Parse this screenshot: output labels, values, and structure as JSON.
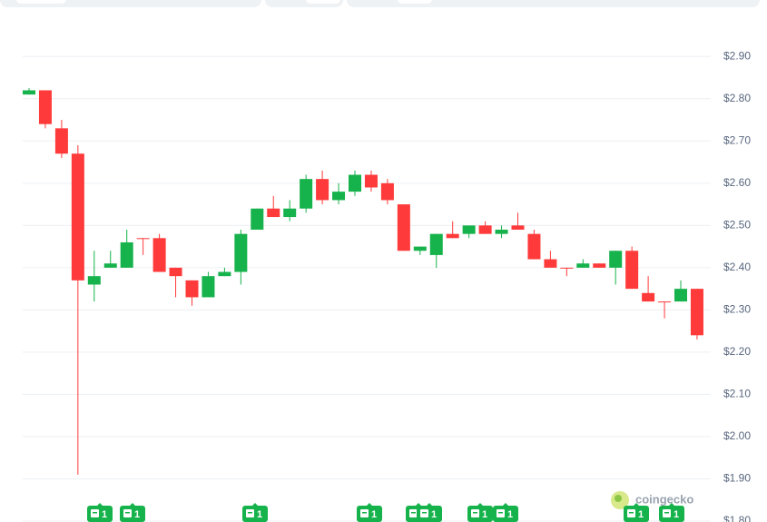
{
  "chart_data": {
    "type": "candlestick",
    "categories": [
      null,
      null,
      null,
      null,
      null,
      null,
      null,
      null,
      null,
      null,
      null,
      null,
      null,
      null,
      null,
      null,
      null,
      null,
      null,
      null,
      null,
      null,
      null,
      null,
      null,
      null,
      null,
      null,
      null,
      null,
      null,
      null,
      null,
      null,
      null,
      null,
      null,
      null,
      null,
      null,
      null,
      null
    ],
    "open": [
      2.81,
      2.82,
      2.73,
      2.67,
      2.36,
      2.4,
      2.4,
      2.47,
      2.47,
      2.4,
      2.37,
      2.33,
      2.38,
      2.39,
      2.49,
      2.54,
      2.52,
      2.54,
      2.61,
      2.56,
      2.58,
      2.62,
      2.6,
      2.55,
      2.44,
      2.43,
      2.48,
      2.48,
      2.5,
      2.48,
      2.5,
      2.48,
      2.42,
      2.4,
      2.4,
      2.41,
      2.4,
      2.44,
      2.34,
      2.32,
      2.32,
      2.35
    ],
    "high": [
      2.825,
      2.82,
      2.75,
      2.69,
      2.44,
      2.44,
      2.49,
      2.47,
      2.48,
      2.4,
      2.37,
      2.39,
      2.4,
      2.49,
      2.54,
      2.57,
      2.56,
      2.62,
      2.63,
      2.6,
      2.63,
      2.63,
      2.61,
      2.55,
      2.45,
      2.48,
      2.51,
      2.5,
      2.51,
      2.5,
      2.53,
      2.49,
      2.44,
      2.4,
      2.42,
      2.41,
      2.44,
      2.45,
      2.38,
      2.32,
      2.37,
      2.35
    ],
    "low": [
      2.81,
      2.73,
      2.66,
      1.91,
      2.32,
      2.4,
      2.4,
      2.43,
      2.39,
      2.33,
      2.31,
      2.33,
      2.38,
      2.36,
      2.49,
      2.52,
      2.51,
      2.53,
      2.55,
      2.55,
      2.57,
      2.58,
      2.55,
      2.44,
      2.43,
      2.4,
      2.47,
      2.47,
      2.48,
      2.47,
      2.49,
      2.42,
      2.4,
      2.38,
      2.4,
      2.4,
      2.36,
      2.35,
      2.32,
      2.28,
      2.32,
      2.23
    ],
    "close": [
      2.82,
      2.74,
      2.67,
      2.37,
      2.38,
      2.41,
      2.46,
      2.468,
      2.39,
      2.38,
      2.33,
      2.38,
      2.39,
      2.48,
      2.54,
      2.52,
      2.54,
      2.61,
      2.56,
      2.58,
      2.62,
      2.59,
      2.56,
      2.44,
      2.45,
      2.48,
      2.47,
      2.5,
      2.48,
      2.49,
      2.49,
      2.42,
      2.4,
      2.399,
      2.41,
      2.4,
      2.44,
      2.35,
      2.32,
      2.319,
      2.35,
      2.24
    ],
    "up_color": "#16b24b",
    "down_color": "#ff3a3a",
    "ylim": [
      1.8,
      2.95
    ],
    "yticks": [
      {
        "value": 1.8,
        "label": "$1.80"
      },
      {
        "value": 1.9,
        "label": "$1.90"
      },
      {
        "value": 2.0,
        "label": "$2.00"
      },
      {
        "value": 2.1,
        "label": "$2.10"
      },
      {
        "value": 2.2,
        "label": "$2.20"
      },
      {
        "value": 2.3,
        "label": "$2.30"
      },
      {
        "value": 2.4,
        "label": "$2.40"
      },
      {
        "value": 2.5,
        "label": "$2.50"
      },
      {
        "value": 2.6,
        "label": "$2.60"
      },
      {
        "value": 2.7,
        "label": "$2.70"
      },
      {
        "value": 2.8,
        "label": "$2.80"
      },
      {
        "value": 2.9,
        "label": "$2.90"
      }
    ],
    "grid": true,
    "news_badges": [
      "1",
      "1",
      "1",
      "1",
      "1",
      "1",
      "1",
      "1",
      "1",
      "1"
    ],
    "watermark": "coingecko"
  }
}
